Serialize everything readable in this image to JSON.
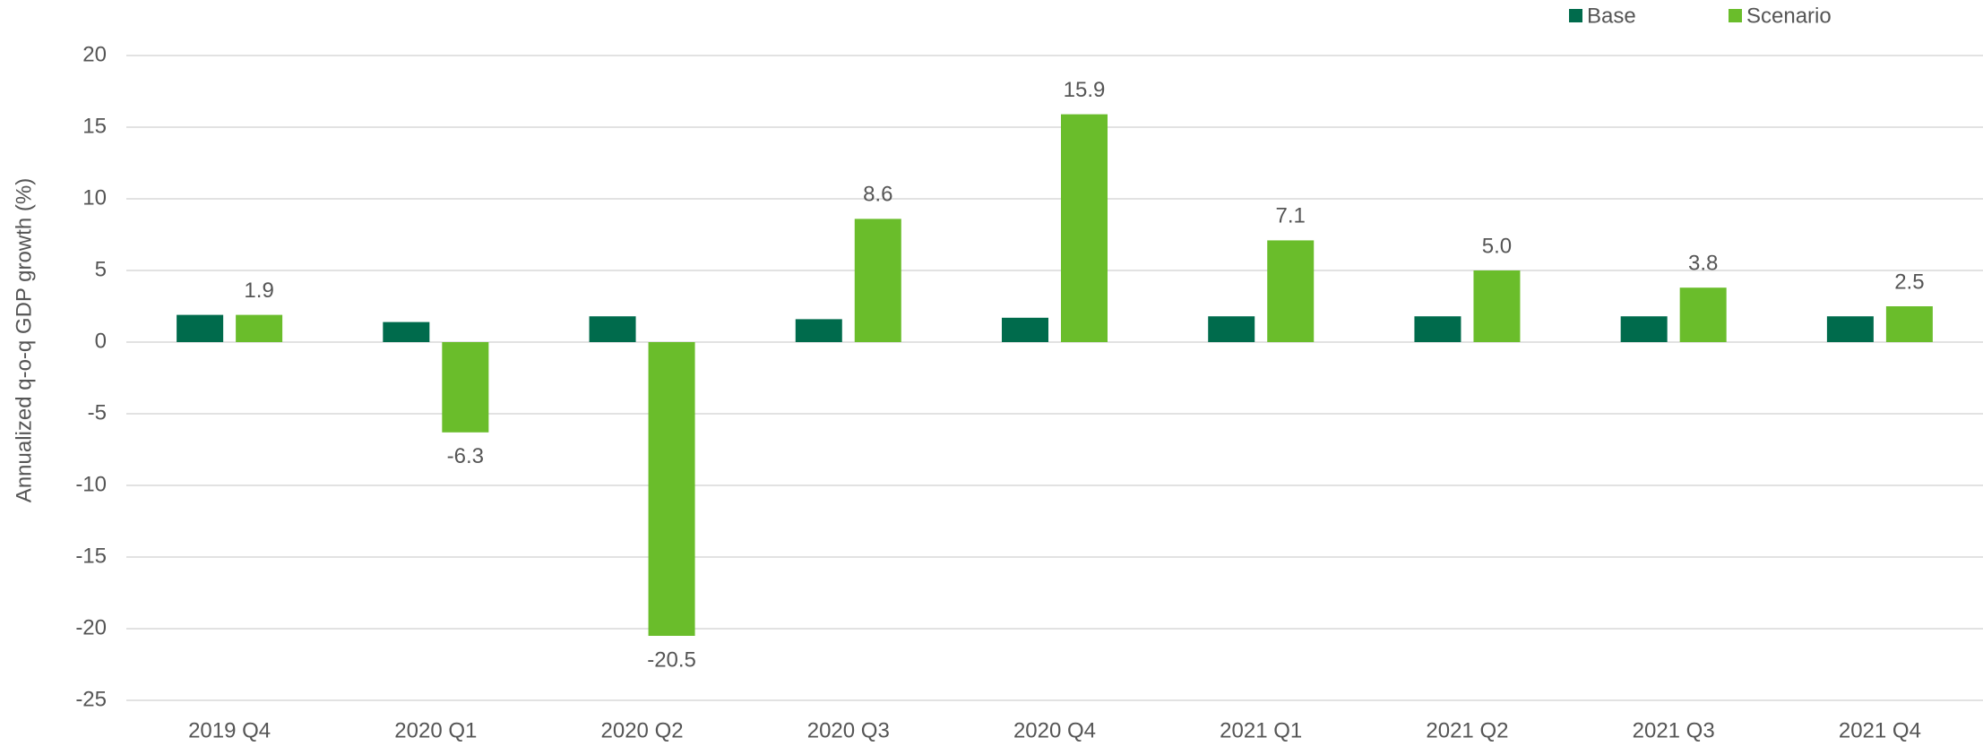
{
  "chart_data": {
    "type": "bar",
    "y_label": "Annualized q-o-q GDP growth (%)",
    "categories": [
      "2019 Q4",
      "2020 Q1",
      "2020 Q2",
      "2020 Q3",
      "2020 Q4",
      "2021 Q1",
      "2021 Q2",
      "2021 Q3",
      "2021 Q4"
    ],
    "series": [
      {
        "name": "Base",
        "color": "#006b4c",
        "values": [
          1.9,
          1.4,
          1.8,
          1.6,
          1.7,
          1.8,
          1.8,
          1.8,
          1.8
        ]
      },
      {
        "name": "Scenario",
        "color": "#6abd2b",
        "values": [
          1.9,
          -6.3,
          -20.5,
          8.6,
          15.9,
          7.1,
          5.0,
          3.8,
          2.5
        ],
        "value_labels": [
          "1.9",
          "-6.3",
          "-20.5",
          "8.6",
          "15.9",
          "7.1",
          "5.0",
          "3.8",
          "2.5"
        ]
      }
    ],
    "ylim": [
      -25,
      20
    ],
    "yticks": [
      -25,
      -20,
      -15,
      -10,
      -5,
      0,
      5,
      10,
      15,
      20
    ],
    "grid": true,
    "legend": "top-right"
  }
}
